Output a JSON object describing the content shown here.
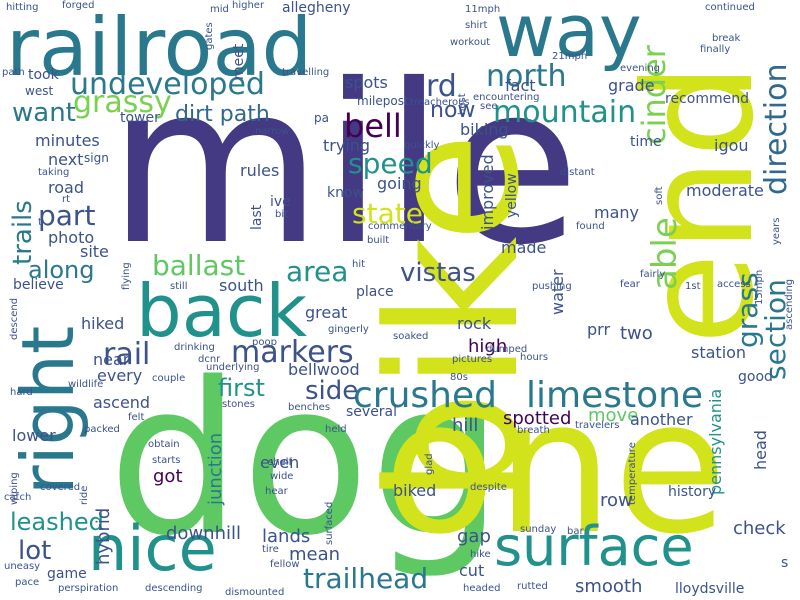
{
  "words": [
    {
      "text": "mile",
      "color": "#443983"
    },
    {
      "text": "dog",
      "color": "#5ec962"
    },
    {
      "text": "one",
      "color": "#d2e21b"
    },
    {
      "text": "bike",
      "color": "#d2e21b"
    },
    {
      "text": "end",
      "color": "#d2e21b"
    },
    {
      "text": "railroad",
      "color": "#2a788e"
    },
    {
      "text": "way",
      "color": "#2a788e"
    },
    {
      "text": "back",
      "color": "#21918c"
    },
    {
      "text": "right",
      "color": "#2a788e"
    },
    {
      "text": "nice",
      "color": "#21918c"
    },
    {
      "text": "surface",
      "color": "#21918c"
    },
    {
      "text": "crushed",
      "color": "#2a788e"
    },
    {
      "text": "limestone",
      "color": "#2a788e"
    },
    {
      "text": "undeveloped",
      "color": "#2a788e"
    },
    {
      "text": "mountain",
      "color": "#21918c"
    },
    {
      "text": "north",
      "color": "#2a788e"
    },
    {
      "text": "trailhead",
      "color": "#2a788e"
    },
    {
      "text": "markers",
      "color": "#3b528b"
    },
    {
      "text": "bell",
      "color": "#440154"
    },
    {
      "text": "rail",
      "color": "#3b528b"
    },
    {
      "text": "grassy",
      "color": "#7ad151"
    },
    {
      "text": "cinder",
      "color": "#7ad151"
    },
    {
      "text": "able",
      "color": "#7ad151"
    },
    {
      "text": "direction",
      "color": "#31688e"
    },
    {
      "text": "section",
      "color": "#2a788e"
    },
    {
      "text": "grass",
      "color": "#2a788e"
    },
    {
      "text": "speed",
      "color": "#21918c"
    },
    {
      "text": "state",
      "color": "#d2e21b"
    },
    {
      "text": "vistas",
      "color": "#3b528b"
    },
    {
      "text": "ballast",
      "color": "#5ec962"
    },
    {
      "text": "area",
      "color": "#21918c"
    },
    {
      "text": "part",
      "color": "#3b528b"
    },
    {
      "text": "along",
      "color": "#2a788e"
    },
    {
      "text": "trails",
      "color": "#2a788e"
    },
    {
      "text": "dirt path",
      "color": "#31688e"
    },
    {
      "text": "want",
      "color": "#2a788e"
    },
    {
      "text": "rd",
      "color": "#3b528b"
    },
    {
      "text": "now",
      "color": "#3b528b"
    },
    {
      "text": "side",
      "color": "#3b528b"
    },
    {
      "text": "first",
      "color": "#21918c"
    },
    {
      "text": "leashed",
      "color": "#21918c"
    },
    {
      "text": "lot",
      "color": "#3b528b"
    },
    {
      "text": "spotted",
      "color": "#440154"
    },
    {
      "text": "high",
      "color": "#440154"
    },
    {
      "text": "pennsylvania",
      "color": "#21918c"
    },
    {
      "text": "station",
      "color": "#3b528b"
    },
    {
      "text": "two",
      "color": "#3b528b"
    },
    {
      "text": "junction",
      "color": "#2a788e"
    },
    {
      "text": "downhill",
      "color": "#3b528b"
    },
    {
      "text": "lands",
      "color": "#3b528b"
    },
    {
      "text": "mean",
      "color": "#3b528b"
    },
    {
      "text": "cut",
      "color": "#3b528b"
    },
    {
      "text": "gap",
      "color": "#3b528b"
    },
    {
      "text": "smooth",
      "color": "#3b528b"
    },
    {
      "text": "check",
      "color": "#3b528b"
    },
    {
      "text": "row",
      "color": "#3b528b"
    },
    {
      "text": "history",
      "color": "#3b528b"
    },
    {
      "text": "hybrid",
      "color": "#3b528b"
    },
    {
      "text": "biked",
      "color": "#3b528b"
    },
    {
      "text": "got",
      "color": "#440154"
    },
    {
      "text": "even",
      "color": "#3b528b"
    },
    {
      "text": "hill",
      "color": "#3b528b"
    },
    {
      "text": "move",
      "color": "#5ec962"
    },
    {
      "text": "another",
      "color": "#3b528b"
    },
    {
      "text": "head",
      "color": "#3b528b"
    },
    {
      "text": "good",
      "color": "#3b528b"
    },
    {
      "text": "rock",
      "color": "#3b528b"
    },
    {
      "text": "prr",
      "color": "#3b528b"
    },
    {
      "text": "water",
      "color": "#3b528b"
    },
    {
      "text": "made",
      "color": "#3b528b"
    },
    {
      "text": "improved",
      "color": "#3b528b"
    },
    {
      "text": "yellow",
      "color": "#3b528b"
    },
    {
      "text": "going",
      "color": "#3b528b"
    },
    {
      "text": "know",
      "color": "#3b528b"
    },
    {
      "text": "trying",
      "color": "#3b528b"
    },
    {
      "text": "biking",
      "color": "#3b528b"
    },
    {
      "text": "fact",
      "color": "#3b528b"
    },
    {
      "text": "grade",
      "color": "#3b528b"
    },
    {
      "text": "spots",
      "color": "#3b528b"
    },
    {
      "text": "many",
      "color": "#3b528b"
    },
    {
      "text": "moderate",
      "color": "#3b528b"
    },
    {
      "text": "igou",
      "color": "#3b528b"
    },
    {
      "text": "time",
      "color": "#3b528b"
    },
    {
      "text": "recommend",
      "color": "#3b528b"
    },
    {
      "text": "ive",
      "color": "#3b528b"
    },
    {
      "text": "last",
      "color": "#3b528b"
    },
    {
      "text": "rules",
      "color": "#3b528b"
    },
    {
      "text": "south",
      "color": "#3b528b"
    },
    {
      "text": "great",
      "color": "#3b528b"
    },
    {
      "text": "place",
      "color": "#3b528b"
    },
    {
      "text": "bellwood",
      "color": "#3b528b"
    },
    {
      "text": "several",
      "color": "#3b528b"
    },
    {
      "text": "every",
      "color": "#3b528b"
    },
    {
      "text": "ascend",
      "color": "#3b528b"
    },
    {
      "text": "near",
      "color": "#3b528b"
    },
    {
      "text": "hiked",
      "color": "#3b528b"
    },
    {
      "text": "lower",
      "color": "#3b528b"
    },
    {
      "text": "believe",
      "color": "#3b528b"
    },
    {
      "text": "site",
      "color": "#3b528b"
    },
    {
      "text": "photo",
      "color": "#3b528b"
    },
    {
      "text": "road",
      "color": "#3b528b"
    },
    {
      "text": "next",
      "color": "#3b528b"
    },
    {
      "text": "minutes",
      "color": "#3b528b"
    },
    {
      "text": "took",
      "color": "#3b528b"
    },
    {
      "text": "west",
      "color": "#3b528b"
    },
    {
      "text": "tower",
      "color": "#3b528b"
    },
    {
      "text": "meet",
      "color": "#3b528b"
    },
    {
      "text": "milepost",
      "color": "#3b528b"
    },
    {
      "text": "sign",
      "color": "#3b528b"
    },
    {
      "text": "game",
      "color": "#3b528b"
    },
    {
      "text": "lloydsville",
      "color": "#3b528b"
    },
    {
      "text": "allegheny",
      "color": "#3b528b"
    },
    {
      "text": "pa",
      "color": "#3b528b"
    },
    {
      "text": "hitting",
      "color": "#3b528b"
    },
    {
      "text": "forged",
      "color": "#3b528b"
    },
    {
      "text": "mid",
      "color": "#3b528b"
    },
    {
      "text": "higher",
      "color": "#3b528b"
    },
    {
      "text": "gates",
      "color": "#3b528b"
    },
    {
      "text": "path",
      "color": "#3b528b"
    },
    {
      "text": "travelling",
      "color": "#3b528b"
    },
    {
      "text": "11mph",
      "color": "#3b528b"
    },
    {
      "text": "shirt",
      "color": "#3b528b"
    },
    {
      "text": "workout",
      "color": "#3b528b"
    },
    {
      "text": "21mph",
      "color": "#3b528b"
    },
    {
      "text": "encountering",
      "color": "#3b528b"
    },
    {
      "text": "treacherous",
      "color": "#3b528b"
    },
    {
      "text": "evening",
      "color": "#3b528b"
    },
    {
      "text": "best",
      "color": "#3b528b"
    },
    {
      "text": "see",
      "color": "#3b528b"
    },
    {
      "text": "continued",
      "color": "#3b528b"
    },
    {
      "text": "break",
      "color": "#3b528b"
    },
    {
      "text": "finally",
      "color": "#3b528b"
    },
    {
      "text": "quickly",
      "color": "#3b528b"
    },
    {
      "text": "narrow",
      "color": "#3b528b"
    },
    {
      "text": "taking",
      "color": "#3b528b"
    },
    {
      "text": "rt",
      "color": "#3b528b"
    },
    {
      "text": "t",
      "color": "#3b528b"
    },
    {
      "text": "bit",
      "color": "#3b528b"
    },
    {
      "text": "commentary",
      "color": "#3b528b"
    },
    {
      "text": "built",
      "color": "#3b528b"
    },
    {
      "text": "distant",
      "color": "#3b528b"
    },
    {
      "text": "found",
      "color": "#3b528b"
    },
    {
      "text": "soft",
      "color": "#3b528b"
    },
    {
      "text": "years",
      "color": "#3b528b"
    },
    {
      "text": "15mph",
      "color": "#3b528b"
    },
    {
      "text": "ascending",
      "color": "#3b528b"
    },
    {
      "text": "access",
      "color": "#3b528b"
    },
    {
      "text": "1st",
      "color": "#3b528b"
    },
    {
      "text": "fairly",
      "color": "#3b528b"
    },
    {
      "text": "fear",
      "color": "#3b528b"
    },
    {
      "text": "pushing",
      "color": "#3b528b"
    },
    {
      "text": "hit",
      "color": "#3b528b"
    },
    {
      "text": "still",
      "color": "#3b528b"
    },
    {
      "text": "flying",
      "color": "#3b528b"
    },
    {
      "text": "poop",
      "color": "#3b528b"
    },
    {
      "text": "descend",
      "color": "#3b528b"
    },
    {
      "text": "gingerly",
      "color": "#3b528b"
    },
    {
      "text": "soaked",
      "color": "#3b528b"
    },
    {
      "text": "dcnr",
      "color": "#3b528b"
    },
    {
      "text": "drinking",
      "color": "#3b528b"
    },
    {
      "text": "underlying",
      "color": "#3b528b"
    },
    {
      "text": "couple",
      "color": "#3b528b"
    },
    {
      "text": "wildlife",
      "color": "#3b528b"
    },
    {
      "text": "hard",
      "color": "#3b528b"
    },
    {
      "text": "stones",
      "color": "#3b528b"
    },
    {
      "text": "benches",
      "color": "#3b528b"
    },
    {
      "text": "felt",
      "color": "#3b528b"
    },
    {
      "text": "packed",
      "color": "#3b528b"
    },
    {
      "text": "obtain",
      "color": "#3b528b"
    },
    {
      "text": "starts",
      "color": "#3b528b"
    },
    {
      "text": "held",
      "color": "#3b528b"
    },
    {
      "text": "breath",
      "color": "#3b528b"
    },
    {
      "text": "travelers",
      "color": "#3b528b"
    },
    {
      "text": "pictures",
      "color": "#3b528b"
    },
    {
      "text": "dumped",
      "color": "#3b528b"
    },
    {
      "text": "hours",
      "color": "#3b528b"
    },
    {
      "text": "80s",
      "color": "#3b528b"
    },
    {
      "text": "temperature",
      "color": "#3b528b"
    },
    {
      "text": "wiping",
      "color": "#3b528b"
    },
    {
      "text": "catch",
      "color": "#3b528b"
    },
    {
      "text": "covered",
      "color": "#3b528b"
    },
    {
      "text": "ride",
      "color": "#3b528b"
    },
    {
      "text": "shelf",
      "color": "#3b528b"
    },
    {
      "text": "wide",
      "color": "#3b528b"
    },
    {
      "text": "hear",
      "color": "#3b528b"
    },
    {
      "text": "glad",
      "color": "#3b528b"
    },
    {
      "text": "despite",
      "color": "#3b528b"
    },
    {
      "text": "surfaced",
      "color": "#3b528b"
    },
    {
      "text": "sunday",
      "color": "#3b528b"
    },
    {
      "text": "bar",
      "color": "#3b528b"
    },
    {
      "text": "hike",
      "color": "#3b528b"
    },
    {
      "text": "tire",
      "color": "#3b528b"
    },
    {
      "text": "fellow",
      "color": "#3b528b"
    },
    {
      "text": "uneasy",
      "color": "#3b528b"
    },
    {
      "text": "pace",
      "color": "#3b528b"
    },
    {
      "text": "perspiration",
      "color": "#3b528b"
    },
    {
      "text": "descending",
      "color": "#3b528b"
    },
    {
      "text": "dismounted",
      "color": "#3b528b"
    },
    {
      "text": "headed",
      "color": "#3b528b"
    },
    {
      "text": "rutted",
      "color": "#3b528b"
    },
    {
      "text": "s",
      "color": "#3b528b"
    }
  ]
}
